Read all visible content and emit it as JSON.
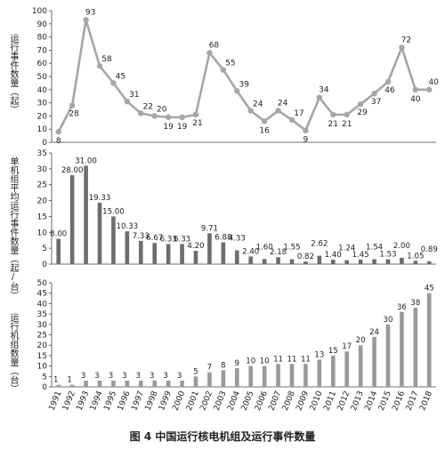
{
  "caption": "图 4    中国运行核电机组及运行事件数量",
  "chart_data": [
    {
      "type": "line",
      "ylabel": "运行事件数量（起）",
      "ylim": [
        0,
        100
      ],
      "yticks": [
        0,
        10,
        20,
        30,
        40,
        50,
        60,
        70,
        80,
        90,
        100
      ],
      "grid": false,
      "categories": [
        "1991",
        "1992",
        "1993",
        "1994",
        "1995",
        "1996",
        "1997",
        "1998",
        "1999",
        "2000",
        "2001",
        "2002",
        "2003",
        "2004",
        "2005",
        "2006",
        "2007",
        "2008",
        "2009",
        "2010",
        "2011",
        "2012",
        "2013",
        "2014",
        "2015",
        "2016",
        "2017",
        "2018"
      ],
      "values": [
        8,
        28,
        93,
        58,
        45,
        31,
        22,
        20,
        19,
        19,
        21,
        68,
        55,
        39,
        24,
        16,
        24,
        17,
        9,
        34,
        21,
        21,
        29,
        37,
        46,
        72,
        40,
        40
      ],
      "labels": [
        "8",
        "28",
        "93",
        "58",
        "45",
        "31",
        "22",
        "20",
        "19",
        "19",
        "21",
        "68",
        "55",
        "39",
        "24",
        "16",
        "24",
        "17",
        "9",
        "34",
        "21",
        "21",
        "29",
        "37",
        "46",
        "72",
        "40",
        "40"
      ],
      "color": "#a6a6a6"
    },
    {
      "type": "bar",
      "ylabel": "单机组平均运行事件数量（起/台）",
      "ylim": [
        0,
        35
      ],
      "yticks": [
        0,
        5,
        10,
        15,
        20,
        25,
        30,
        35
      ],
      "grid": false,
      "categories": [
        "1991",
        "1992",
        "1993",
        "1994",
        "1995",
        "1996",
        "1997",
        "1998",
        "1999",
        "2000",
        "2001",
        "2002",
        "2003",
        "2004",
        "2005",
        "2006",
        "2007",
        "2008",
        "2009",
        "2010",
        "2011",
        "2012",
        "2013",
        "2014",
        "2015",
        "2016",
        "2017",
        "2018"
      ],
      "values": [
        8.0,
        28.0,
        31.0,
        19.33,
        15.0,
        10.33,
        7.33,
        6.67,
        6.33,
        6.33,
        4.2,
        9.71,
        6.88,
        4.33,
        2.4,
        1.6,
        2.18,
        1.55,
        0.82,
        2.62,
        1.4,
        1.24,
        1.45,
        1.54,
        1.53,
        2.0,
        1.05,
        0.89
      ],
      "labels": [
        "8.00",
        "28.00",
        "31.00",
        "19.33",
        "15.00",
        "10.33",
        "7.33",
        "6.67",
        "6.33",
        "6.33",
        "4.20",
        "9.71",
        "6.88",
        "4.33",
        "2.40",
        "1.60",
        "2.18",
        "1.55",
        "0.82",
        "2.62",
        "1.40",
        "1.24",
        "1.45",
        "1.54",
        "1.53",
        "2.00",
        "1.05",
        "0.89"
      ],
      "color": "#6d6d6d"
    },
    {
      "type": "bar",
      "ylabel": "运行机组数量（台）",
      "ylim": [
        0,
        50
      ],
      "yticks": [
        0,
        5,
        10,
        15,
        20,
        25,
        30,
        35,
        40,
        45,
        50
      ],
      "grid": false,
      "categories": [
        "1991",
        "1992",
        "1993",
        "1994",
        "1995",
        "1996",
        "1997",
        "1998",
        "1999",
        "2000",
        "2001",
        "2002",
        "2003",
        "2004",
        "2005",
        "2006",
        "2007",
        "2008",
        "2009",
        "2010",
        "2011",
        "2012",
        "2013",
        "2014",
        "2015",
        "2016",
        "2017",
        "2018"
      ],
      "values": [
        1,
        1,
        3,
        3,
        3,
        3,
        3,
        3,
        3,
        3,
        5,
        7,
        8,
        9,
        10,
        10,
        11,
        11,
        11,
        13,
        15,
        17,
        20,
        24,
        30,
        36,
        38,
        45
      ],
      "labels": [
        "1",
        "1",
        "3",
        "3",
        "3",
        "3",
        "3",
        "3",
        "3",
        "3",
        "5",
        "7",
        "8",
        "9",
        "10",
        "10",
        "11",
        "11",
        "11",
        "13",
        "15",
        "17",
        "20",
        "24",
        "30",
        "36",
        "38",
        "45"
      ],
      "color": "#9a9a9a"
    }
  ]
}
